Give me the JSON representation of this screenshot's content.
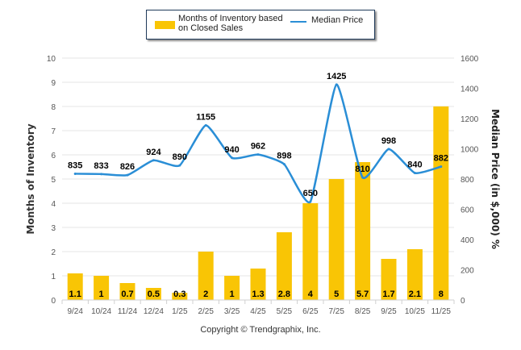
{
  "chart_data": {
    "type": "bar",
    "title": "",
    "categories": [
      "9/24",
      "10/24",
      "11/24",
      "12/24",
      "1/25",
      "2/25",
      "3/25",
      "4/25",
      "5/25",
      "6/25",
      "7/25",
      "8/25",
      "9/25",
      "10/25",
      "11/25"
    ],
    "series": [
      {
        "name": "Months of Inventory based on Closed Sales",
        "type": "bar",
        "axis": "left",
        "color": "#f9c505",
        "values": [
          1.1,
          1,
          0.7,
          0.5,
          0.3,
          2,
          1,
          1.3,
          2.8,
          4,
          5,
          5.7,
          1.7,
          2.1,
          8
        ],
        "labels": [
          "1.1",
          "1",
          "0.7",
          "0.5",
          "0.3",
          "2",
          "1",
          "1.3",
          "2.8",
          "4",
          "5",
          "5.7",
          "1.7",
          "2.1",
          "8"
        ]
      },
      {
        "name": "Median Price",
        "type": "line",
        "axis": "right",
        "color": "#2a8ed6",
        "values": [
          835,
          833,
          826,
          924,
          890,
          1155,
          940,
          962,
          898,
          650,
          1425,
          810,
          998,
          840,
          882
        ],
        "labels": [
          "835",
          "833",
          "826",
          "924",
          "890",
          "1155",
          "940",
          "962",
          "898",
          "650",
          "1425",
          "810",
          "998",
          "840",
          "882"
        ]
      }
    ],
    "ylabel": "Months of Inventory",
    "ylabel_right": "Median Price (in $,000) %",
    "ylim": [
      0,
      10
    ],
    "ylim_right": [
      0,
      1600
    ],
    "yticks": [
      "0",
      "1",
      "2",
      "3",
      "4",
      "5",
      "6",
      "7",
      "8",
      "9",
      "10"
    ],
    "yticks_right": [
      "0",
      "200",
      "400",
      "600",
      "800",
      "1000",
      "1200",
      "1400",
      "1600"
    ],
    "grid": true,
    "legend": {
      "placement": "top-center",
      "items": [
        "Months of Inventory based on Closed Sales",
        "Median Price"
      ]
    }
  },
  "legend": {
    "bar_label": "Months of Inventory based on Closed Sales",
    "line_label": "Median Price"
  },
  "footer": {
    "copyright": "Copyright © Trendgraphix, Inc."
  }
}
